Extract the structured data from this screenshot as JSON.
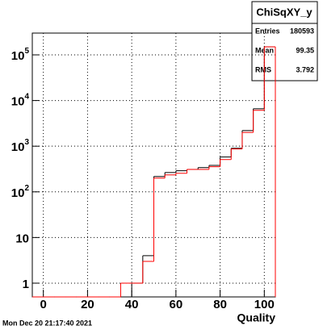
{
  "chart_data": {
    "type": "histogram",
    "stats": {
      "title": "ChiSqXY_y",
      "rows": [
        [
          "Entries",
          "180593"
        ],
        [
          "Mean",
          "99.35"
        ],
        [
          "RMS",
          "3.792"
        ]
      ]
    },
    "x_label": "Quality",
    "date": "Mon Dec 20 21:17:40 2021",
    "bins": [
      -5,
      0,
      5,
      10,
      15,
      20,
      25,
      30,
      35,
      40,
      45,
      50,
      55,
      60,
      65,
      70,
      75,
      80,
      85,
      90,
      95,
      100,
      105
    ],
    "series": [
      {
        "color": "#000000",
        "values": [
          0,
          0,
          0,
          0,
          0,
          0,
          0,
          0,
          0,
          1,
          4,
          217,
          265,
          290,
          310,
          340,
          380,
          580,
          900,
          2200,
          6600,
          150000
        ]
      },
      {
        "color": "#ff0000",
        "values": [
          0,
          0,
          0,
          0,
          0,
          0,
          0,
          0,
          1,
          1,
          3,
          200,
          235,
          255,
          310,
          310,
          355,
          510,
          870,
          2000,
          6100,
          150000
        ]
      }
    ],
    "xlim": [
      -5,
      105
    ],
    "xticks": [
      0,
      20,
      40,
      60,
      80,
      100
    ],
    "ylim": [
      0.5,
      300000
    ],
    "log_y": true,
    "grid": true,
    "yticks": [
      1,
      10,
      {
        "value": 100,
        "label": "10^2"
      },
      {
        "value": 1000,
        "label": "10^3"
      },
      {
        "value": 10000,
        "label": "10^4"
      },
      {
        "value": 100000,
        "label": "10^5"
      }
    ]
  }
}
